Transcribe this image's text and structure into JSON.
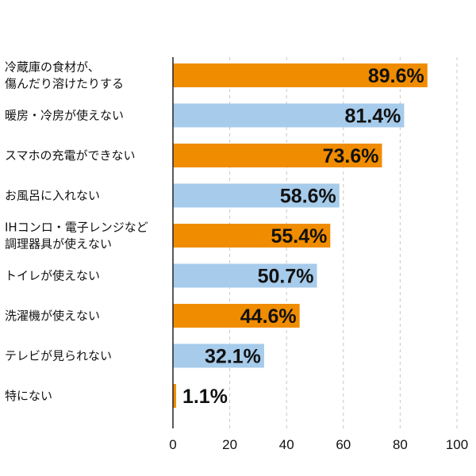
{
  "chart_data": {
    "type": "bar",
    "orientation": "horizontal",
    "categories": [
      [
        "冷蔵庫の食材が、",
        "傷んだり溶けたりする"
      ],
      [
        "暖房・冷房が使えない"
      ],
      [
        "スマホの充電ができない"
      ],
      [
        "お風呂に入れない"
      ],
      [
        "IHコンロ・電子レンジなど",
        "調理器具が使えない"
      ],
      [
        "トイレが使えない"
      ],
      [
        "洗濯機が使えない"
      ],
      [
        "テレビが見られない"
      ],
      [
        "特にない"
      ]
    ],
    "values": [
      89.6,
      81.4,
      73.6,
      58.6,
      55.4,
      50.7,
      44.6,
      32.1,
      1.1
    ],
    "value_labels": [
      "89.6%",
      "81.4%",
      "73.6%",
      "58.6%",
      "55.4%",
      "50.7%",
      "44.6%",
      "32.1%",
      "1.1%"
    ],
    "bar_colors": [
      "#F08C00",
      "#A6CBEB",
      "#F08C00",
      "#A6CBEB",
      "#F08C00",
      "#A6CBEB",
      "#F08C00",
      "#A6CBEB",
      "#F08C00"
    ],
    "xlim": [
      0,
      100
    ],
    "xticks": [
      0,
      20,
      40,
      60,
      80,
      100
    ],
    "xtick_labels": [
      "0",
      "20",
      "40",
      "60",
      "80",
      "100"
    ],
    "grid": "vertical dashed",
    "title": "",
    "xlabel": "",
    "ylabel": ""
  }
}
